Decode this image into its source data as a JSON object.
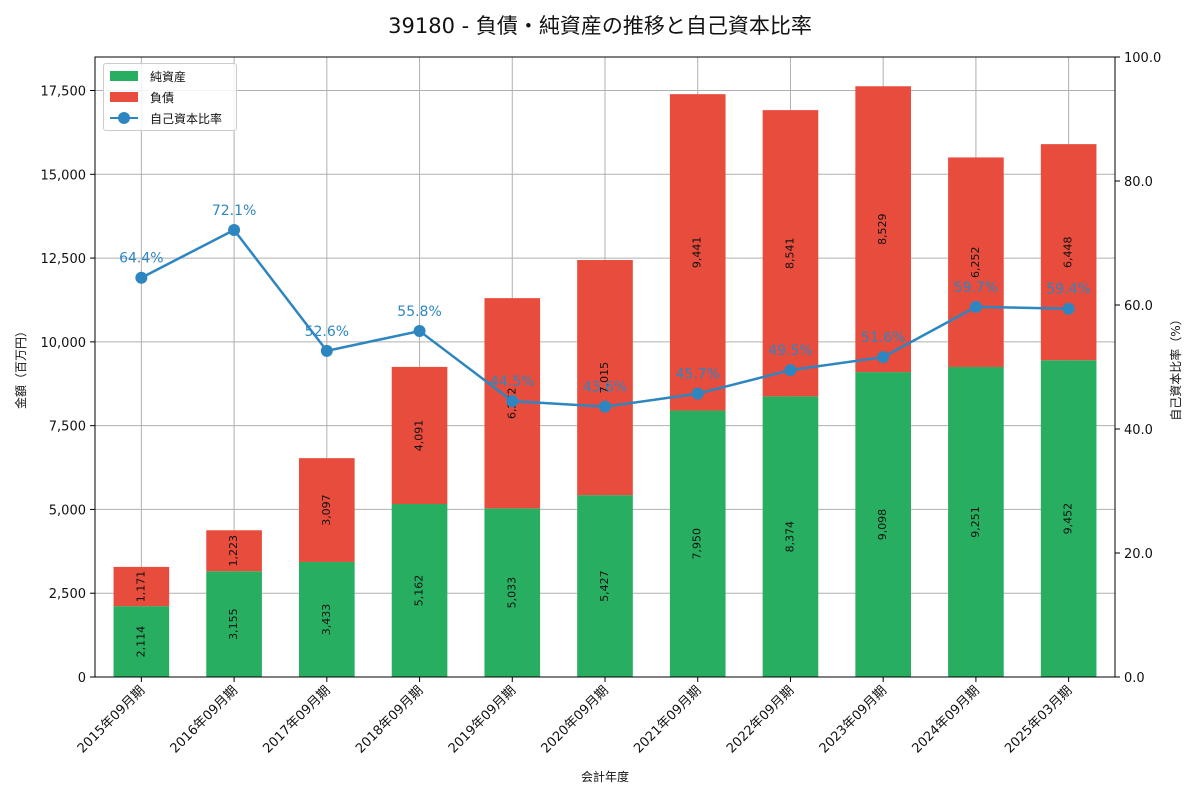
{
  "title": "39180 - 負債・純資産の推移と自己資本比率",
  "legend": {
    "equity": "純資産",
    "liabilities": "負債",
    "ratio": "自己資本比率"
  },
  "colors": {
    "equity": "#27ae60",
    "liabilities": "#e74c3c",
    "ratio": "#2e86c1"
  },
  "axes": {
    "xlabel": "会計年度",
    "ylabel_left": "金額（百万円）",
    "ylabel_right": "自己資本比率（%）",
    "left_ticks": [
      "0",
      "2,500",
      "5,000",
      "7,500",
      "10,000",
      "12,500",
      "15,000",
      "17,500"
    ],
    "right_ticks": [
      "0.0",
      "20.0",
      "40.0",
      "60.0",
      "80.0",
      "100.0"
    ]
  },
  "chart_data": {
    "type": "bar",
    "stacked": true,
    "title": "39180 - 負債・純資産の推移と自己資本比率",
    "xlabel": "会計年度",
    "ylabel": "金額（百万円）",
    "ylabel_right": "自己資本比率（%）",
    "ylim": [
      0,
      18500
    ],
    "ylim_right": [
      0,
      100
    ],
    "grid": true,
    "legend_position": "upper left",
    "categories": [
      "2015年09月期",
      "2016年09月期",
      "2017年09月期",
      "2018年09月期",
      "2019年09月期",
      "2020年09月期",
      "2021年09月期",
      "2022年09月期",
      "2023年09月期",
      "2024年09月期",
      "2025年03月期"
    ],
    "series": [
      {
        "name": "純資産",
        "type": "bar",
        "axis": "left",
        "values": [
          2114,
          3155,
          3433,
          5162,
          5033,
          5427,
          7950,
          8374,
          9098,
          9251,
          9452
        ],
        "labels": [
          "2,114",
          "3,155",
          "3,433",
          "5,162",
          "5,033",
          "5,427",
          "7,950",
          "8,374",
          "9,098",
          "9,251",
          "9,452"
        ]
      },
      {
        "name": "負債",
        "type": "bar",
        "axis": "left",
        "values": [
          1171,
          1223,
          3097,
          4091,
          6272,
          7015,
          9441,
          8541,
          8529,
          6252,
          6448
        ],
        "labels": [
          "1,171",
          "1,223",
          "3,097",
          "4,091",
          "6,272",
          "7,015",
          "9,441",
          "8,541",
          "8,529",
          "6,252",
          "6,448"
        ]
      },
      {
        "name": "自己資本比率",
        "type": "line",
        "axis": "right",
        "values": [
          64.4,
          72.1,
          52.6,
          55.8,
          44.5,
          43.6,
          45.7,
          49.5,
          51.6,
          59.7,
          59.4
        ],
        "labels": [
          "64.4%",
          "72.1%",
          "52.6%",
          "55.8%",
          "44.5%",
          "43.6%",
          "45.7%",
          "49.5%",
          "51.6%",
          "59.7%",
          "59.4%"
        ]
      }
    ]
  }
}
